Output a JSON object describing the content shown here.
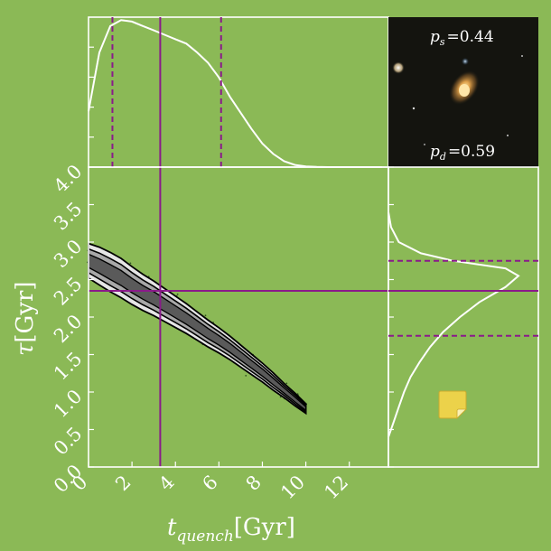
{
  "colors": {
    "background": "#8bb956",
    "axes": "#ffffff",
    "median_line": "#8a1a8a",
    "interval_line": "#8a1a8a",
    "contour_fill_light": "#e6e6e6",
    "contour_fill_mid": "#a8a8a8",
    "contour_fill_dark": "#5a5a5a",
    "scatter": "#1c3a14",
    "note_icon": "#ecd24a"
  },
  "labels": {
    "ps": "p_s = 0.44",
    "ps_sym": "p",
    "ps_sub": "s",
    "ps_val": "=0.44",
    "pd_sym": "p",
    "pd_sub": "d",
    "pd_val": "=0.59"
  },
  "icons": [
    "note-icon"
  ],
  "chart_data": [
    {
      "panel": "tq-marginal",
      "type": "line",
      "x": [
        0,
        0.5,
        1,
        1.5,
        2,
        2.5,
        3,
        3.5,
        4,
        4.5,
        5,
        5.5,
        6,
        6.5,
        7,
        7.5,
        8,
        8.5,
        9,
        9.5,
        10,
        10.5,
        11,
        11.5,
        12,
        12.5,
        13,
        13.5
      ],
      "y": [
        0.38,
        0.78,
        0.96,
        1.0,
        0.99,
        0.96,
        0.93,
        0.9,
        0.87,
        0.84,
        0.78,
        0.71,
        0.61,
        0.48,
        0.37,
        0.26,
        0.16,
        0.09,
        0.04,
        0.015,
        0.005,
        0.001,
        0,
        0,
        0,
        0,
        0,
        0
      ],
      "xlim": [
        0,
        13.8
      ],
      "ylim": [
        0,
        1.02
      ],
      "median": 3.3,
      "interval": [
        1.1,
        6.1
      ]
    },
    {
      "panel": "tau-tq-joint",
      "type": "scatter",
      "xlabel": "t_quench[Gyr]",
      "ylabel": "τ[Gyr]",
      "xlim": [
        0,
        13.8
      ],
      "ylim": [
        0,
        4.0
      ],
      "xticks": [
        "0",
        "2",
        "4",
        "6",
        "8",
        "10",
        "12"
      ],
      "yticks": [
        "0.0",
        "0.5",
        "1.0",
        "1.5",
        "2.0",
        "2.5",
        "3.0",
        "3.5",
        "4.0"
      ],
      "ridge": {
        "t": [
          0,
          0.5,
          1,
          1.5,
          2,
          2.5,
          3,
          3.5,
          4,
          4.5,
          5,
          5.5,
          6,
          6.5,
          7,
          7.5,
          8,
          8.5,
          9,
          9.5,
          10
        ],
        "tau": [
          2.75,
          2.68,
          2.6,
          2.52,
          2.42,
          2.33,
          2.25,
          2.16,
          2.07,
          1.98,
          1.88,
          1.78,
          1.69,
          1.59,
          1.48,
          1.37,
          1.26,
          1.14,
          1.02,
          0.9,
          0.78
        ],
        "halfwidth": [
          0.22,
          0.24,
          0.25,
          0.25,
          0.24,
          0.23,
          0.22,
          0.21,
          0.2,
          0.19,
          0.18,
          0.17,
          0.16,
          0.15,
          0.14,
          0.13,
          0.12,
          0.11,
          0.09,
          0.08,
          0.06
        ]
      },
      "median": {
        "t_quench": 3.3,
        "tau": 2.35
      }
    },
    {
      "panel": "tau-marginal",
      "type": "line",
      "orientation": "horizontal",
      "tau": [
        0.4,
        0.6,
        0.8,
        1.0,
        1.2,
        1.4,
        1.6,
        1.8,
        2.0,
        2.2,
        2.4,
        2.55,
        2.65,
        2.75,
        2.85,
        3.0,
        3.2,
        3.4
      ],
      "density": [
        0.0,
        0.04,
        0.08,
        0.12,
        0.17,
        0.24,
        0.32,
        0.42,
        0.55,
        0.7,
        0.9,
        1.0,
        0.9,
        0.5,
        0.25,
        0.08,
        0.02,
        0.0
      ],
      "ylim": [
        0,
        4.0
      ],
      "median": 2.35,
      "interval": [
        1.75,
        2.75
      ]
    }
  ]
}
